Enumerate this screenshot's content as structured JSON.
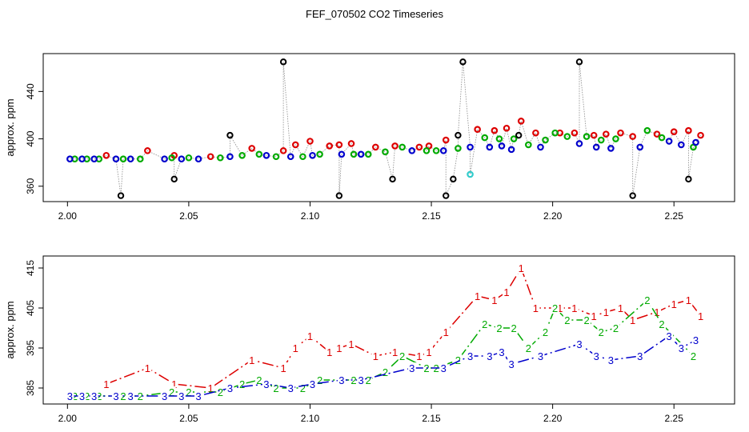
{
  "title": "FEF_070502  CO2 Timeseries",
  "chart_data": [
    {
      "type": "scatter",
      "ylabel": "approx. ppm",
      "xlim": [
        1.99,
        2.275
      ],
      "ylim": [
        347,
        472
      ],
      "xticks": [
        "2.00",
        "2.05",
        "2.10",
        "2.15",
        "2.20",
        "2.25"
      ],
      "yticks": [
        "360",
        "400",
        "440"
      ],
      "series": [
        {
          "name": "1",
          "color": "#dd0000",
          "x": [
            2.016,
            2.033,
            2.044,
            2.059,
            2.076,
            2.089,
            2.094,
            2.1,
            2.108,
            2.112,
            2.117,
            2.127,
            2.135,
            2.145,
            2.149,
            2.156,
            2.169,
            2.176,
            2.181,
            2.187,
            2.193,
            2.203,
            2.209,
            2.217,
            2.222,
            2.228,
            2.233,
            2.243,
            2.25,
            2.256,
            2.261
          ],
          "y": [
            386,
            390,
            386,
            385,
            392,
            390,
            395,
            398,
            394,
            395,
            396,
            393,
            394,
            393,
            394,
            399,
            408,
            407,
            409,
            415,
            405,
            405,
            405,
            403,
            404,
            405,
            402,
            404,
            406,
            407,
            403
          ]
        },
        {
          "name": "2",
          "color": "#00aa00",
          "x": [
            2.003,
            2.008,
            2.013,
            2.023,
            2.03,
            2.043,
            2.05,
            2.063,
            2.072,
            2.079,
            2.086,
            2.097,
            2.104,
            2.118,
            2.124,
            2.131,
            2.138,
            2.148,
            2.152,
            2.161,
            2.172,
            2.178,
            2.184,
            2.19,
            2.197,
            2.201,
            2.206,
            2.214,
            2.22,
            2.226,
            2.239,
            2.245,
            2.258
          ],
          "y": [
            383,
            383,
            383,
            383,
            383,
            384,
            384,
            384,
            386,
            387,
            385,
            385,
            387,
            387,
            387,
            389,
            393,
            390,
            390,
            392,
            401,
            400,
            400,
            395,
            399,
            405,
            402,
            402,
            399,
            400,
            407,
            401,
            393
          ]
        },
        {
          "name": "3",
          "color": "#0000cc",
          "x": [
            2.001,
            2.006,
            2.011,
            2.02,
            2.026,
            2.04,
            2.047,
            2.054,
            2.067,
            2.082,
            2.092,
            2.101,
            2.113,
            2.121,
            2.142,
            2.155,
            2.166,
            2.174,
            2.179,
            2.183,
            2.195,
            2.211,
            2.218,
            2.224,
            2.236,
            2.248,
            2.253,
            2.259
          ],
          "y": [
            383,
            383,
            383,
            383,
            383,
            383,
            383,
            383,
            385,
            386,
            385,
            386,
            387,
            387,
            390,
            390,
            393,
            393,
            394,
            391,
            393,
            396,
            393,
            392,
            393,
            398,
            395,
            397
          ]
        }
      ],
      "outliers": {
        "color": "#000000",
        "x": [
          2.022,
          2.044,
          2.067,
          2.089,
          2.112,
          2.134,
          2.156,
          2.159,
          2.161,
          2.163,
          2.186,
          2.211,
          2.233,
          2.256
        ],
        "y": [
          352,
          366,
          403,
          465,
          352,
          366,
          352,
          366,
          403,
          465,
          403,
          465,
          352,
          366
        ]
      },
      "cyan_point": {
        "color": "#33cccc",
        "x": 2.166,
        "y": 370
      }
    },
    {
      "type": "line",
      "ylabel": "approx. ppm",
      "xlim": [
        1.99,
        2.275
      ],
      "ylim": [
        381,
        418
      ],
      "xticks": [
        "2.00",
        "2.05",
        "2.10",
        "2.15",
        "2.20",
        "2.25"
      ],
      "yticks": [
        "385",
        "395",
        "405",
        "415"
      ]
    }
  ]
}
